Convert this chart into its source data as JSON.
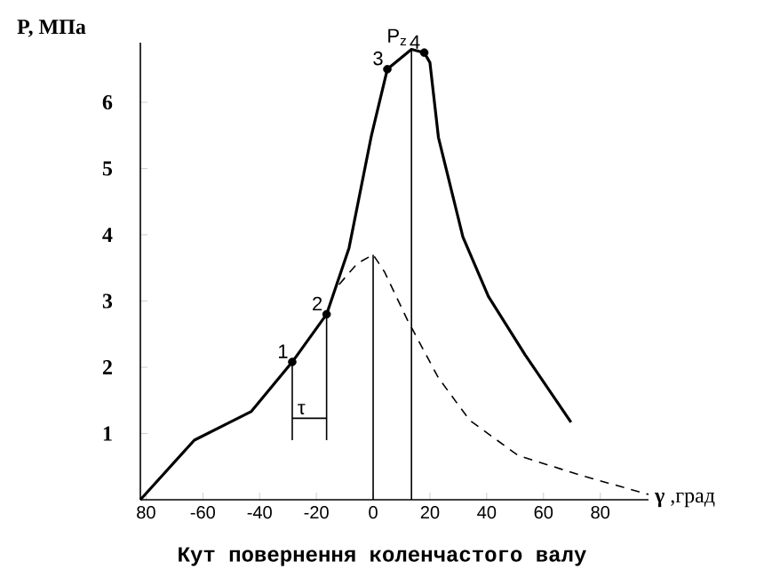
{
  "chart_data": {
    "type": "line",
    "xlabel": "Кут повернення коленчастого валу",
    "ylabel": "P, МПа",
    "xlim": [
      -82,
      97
    ],
    "ylim": [
      0,
      6.9
    ],
    "xticks": [
      {
        "value": -80,
        "label": "80"
      },
      -60,
      -40,
      -20,
      0,
      20,
      40,
      60,
      80
    ],
    "yticks": [
      1,
      2,
      3,
      4,
      5,
      6
    ],
    "series": [
      {
        "color": "#000000",
        "x": [
          -82,
          -63,
          -43,
          -28.5,
          -16.4,
          -8.5,
          -0.6,
          5,
          13.5,
          18,
          20,
          23,
          31.6,
          40.6,
          53.5,
          69.7
        ],
        "values": [
          0,
          0.9,
          1.33,
          2.08,
          2.8,
          3.8,
          5.5,
          6.5,
          6.8,
          6.75,
          6.6,
          5.47,
          3.97,
          3.07,
          2.19,
          1.17
        ]
      },
      {
        "color": "#000000",
        "line_style": "dashed",
        "x": [
          -12,
          -5.5,
          0,
          4,
          12,
          23,
          34,
          51,
          73,
          97
        ],
        "values": [
          3.25,
          3.57,
          3.7,
          3.44,
          2.72,
          1.84,
          1.2,
          0.67,
          0.37,
          0.08
        ]
      },
      {
        "type": "scatter",
        "color": "#000000",
        "marker": "circle",
        "x": [
          -28.5,
          -16.4,
          5,
          18
        ],
        "values": [
          2.08,
          2.8,
          6.5,
          6.75
        ]
      },
      {
        "color": "#000000",
        "x": [
          0,
          0
        ],
        "values": [
          0,
          3.7
        ]
      },
      {
        "color": "#000000",
        "x": [
          13.5,
          13.5
        ],
        "values": [
          0,
          6.8
        ]
      },
      {
        "color": "#000000",
        "x": [
          -28.5,
          -28.5
        ],
        "values": [
          0.9,
          2.08
        ]
      },
      {
        "color": "#000000",
        "x": [
          -16.4,
          -16.4
        ],
        "values": [
          0.9,
          2.8
        ]
      },
      {
        "color": "#000000",
        "x": [
          -28.5,
          -16.4
        ],
        "values": [
          1.23,
          1.23
        ]
      }
    ],
    "annotations": [
      "**γ** ,град",
      {
        "text": "1",
        "x": -28.5,
        "y": 2.08
      },
      {
        "text": "2",
        "x": -16.4,
        "y": 2.8
      },
      {
        "text": "3",
        "x": 5,
        "y": 6.5
      },
      {
        "text": "4",
        "x": 18,
        "y": 6.75
      },
      {
        "text": "P$_{z}$",
        "x": 13.5,
        "y": 6.8
      },
      {
        "text": "τ",
        "x": -22.5,
        "y": 1.23
      }
    ]
  }
}
